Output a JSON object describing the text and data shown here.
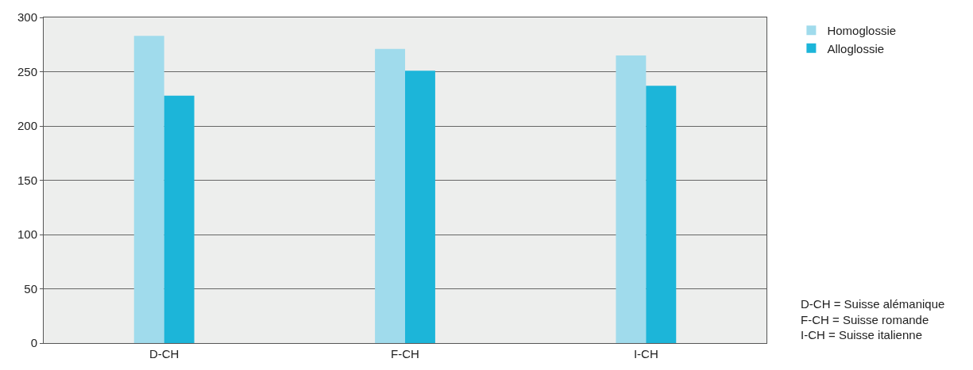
{
  "chart_data": {
    "type": "bar",
    "categories": [
      "D-CH",
      "F-CH",
      "I-CH"
    ],
    "series": [
      {
        "name": "Homoglossie",
        "color": "#a0dbec",
        "values": [
          283,
          271,
          265
        ]
      },
      {
        "name": "Alloglossie",
        "color": "#1cb5d9",
        "values": [
          228,
          251,
          237
        ]
      }
    ],
    "ylim": [
      0,
      300
    ],
    "yticks": [
      0,
      50,
      100,
      150,
      200,
      250,
      300
    ],
    "grid": "y",
    "legend": "top right",
    "annotations": [
      "D-CH = Suisse alémanique\nF-CH = Suisse romande\nI-CH = Suisse italienne"
    ]
  }
}
